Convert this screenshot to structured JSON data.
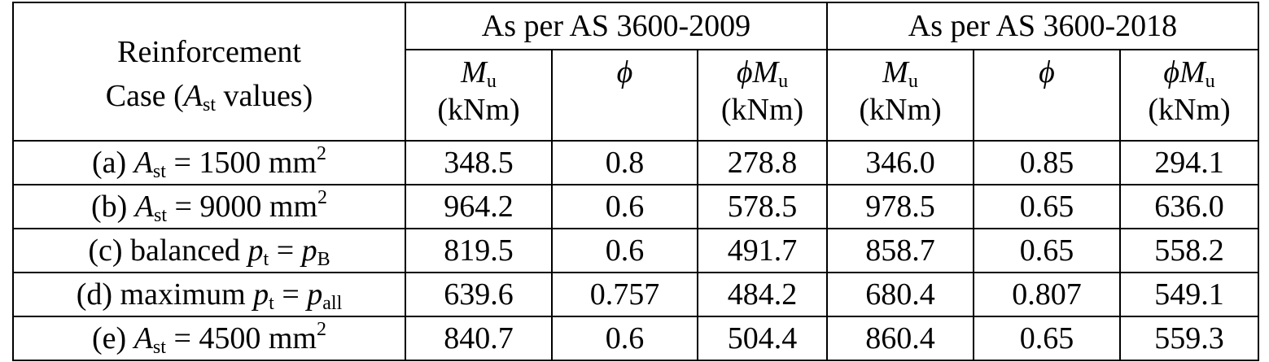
{
  "header": {
    "case": [
      [
        {
          "t": "Reinforcement"
        }
      ],
      [
        {
          "t": "Case ("
        },
        {
          "t": "A",
          "s": "i"
        },
        {
          "t": "st",
          "s": "sub"
        },
        {
          "t": " values)"
        }
      ]
    ],
    "groups": [
      "As per AS 3600-2009",
      "As per AS 3600-2018"
    ],
    "columns": [
      [
        [
          {
            "t": "M",
            "s": "i"
          },
          {
            "t": "u",
            "s": "sub"
          }
        ],
        [
          {
            "t": "(kNm)"
          }
        ]
      ],
      [
        [
          {
            "t": "ϕ",
            "s": "i"
          }
        ]
      ],
      [
        [
          {
            "t": "ϕM",
            "s": "i"
          },
          {
            "t": "u",
            "s": "sub"
          }
        ],
        [
          {
            "t": "(kNm)"
          }
        ]
      ],
      [
        [
          {
            "t": "M",
            "s": "i"
          },
          {
            "t": "u",
            "s": "sub"
          }
        ],
        [
          {
            "t": "(kNm)"
          }
        ]
      ],
      [
        [
          {
            "t": "ϕ",
            "s": "i"
          }
        ]
      ],
      [
        [
          {
            "t": "ϕM",
            "s": "i"
          },
          {
            "t": "u",
            "s": "sub"
          }
        ],
        [
          {
            "t": "(kNm)"
          }
        ]
      ]
    ]
  },
  "rows": [
    {
      "case": [
        {
          "t": "(a) "
        },
        {
          "t": "A",
          "s": "i"
        },
        {
          "t": "st",
          "s": "sub"
        },
        {
          "t": " = 1500 mm"
        },
        {
          "t": "2",
          "s": "sup"
        }
      ],
      "values": [
        "348.5",
        "0.8",
        "278.8",
        "346.0",
        "0.85",
        "294.1"
      ]
    },
    {
      "case": [
        {
          "t": "(b) "
        },
        {
          "t": "A",
          "s": "i"
        },
        {
          "t": "st",
          "s": "sub"
        },
        {
          "t": " = 9000 mm"
        },
        {
          "t": "2",
          "s": "sup"
        }
      ],
      "values": [
        "964.2",
        "0.6",
        "578.5",
        "978.5",
        "0.65",
        "636.0"
      ]
    },
    {
      "case": [
        {
          "t": "(c) balanced "
        },
        {
          "t": "p",
          "s": "i"
        },
        {
          "t": "t",
          "s": "sub"
        },
        {
          "t": " = "
        },
        {
          "t": "p",
          "s": "i"
        },
        {
          "t": "B",
          "s": "sub"
        }
      ],
      "values": [
        "819.5",
        "0.6",
        "491.7",
        "858.7",
        "0.65",
        "558.2"
      ]
    },
    {
      "case": [
        {
          "t": "(d) maximum "
        },
        {
          "t": "p",
          "s": "i"
        },
        {
          "t": "t",
          "s": "sub"
        },
        {
          "t": " = "
        },
        {
          "t": "p",
          "s": "i"
        },
        {
          "t": "all",
          "s": "sub"
        }
      ],
      "values": [
        "639.6",
        "0.757",
        "484.2",
        "680.4",
        "0.807",
        "549.1"
      ]
    },
    {
      "case": [
        {
          "t": "(e) "
        },
        {
          "t": "A",
          "s": "i"
        },
        {
          "t": "st",
          "s": "sub"
        },
        {
          "t": " = 4500 mm"
        },
        {
          "t": "2",
          "s": "sup"
        }
      ],
      "values": [
        "840.7",
        "0.6",
        "504.4",
        "860.4",
        "0.65",
        "559.3"
      ]
    }
  ]
}
